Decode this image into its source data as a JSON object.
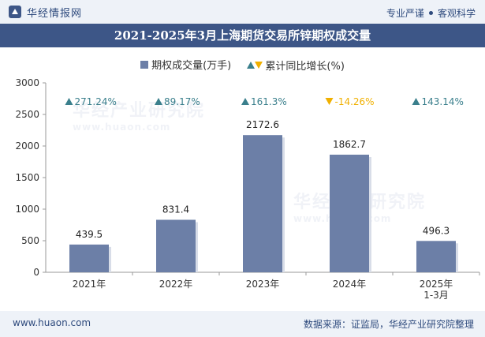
{
  "header": {
    "brand": "华经情报网",
    "slogan_left": "专业严谨",
    "slogan_right": "客观科学"
  },
  "title": "2021-2025年3月上海期货交易所锌期权成交量",
  "legend": {
    "bar": "期权成交量(万手)",
    "line": "累计同比增长(%)"
  },
  "footer": {
    "url": "www.huaon.com",
    "source": "数据来源：证监局，华经产业研究院整理"
  },
  "watermark": {
    "cn": "华经产业研究院",
    "en": "www.huaon.com"
  },
  "chart_data": {
    "type": "bar",
    "categories": [
      "2021年",
      "2022年",
      "2023年",
      "2024年",
      "2025年\n1-3月"
    ],
    "series": [
      {
        "name": "期权成交量(万手)",
        "values": [
          439.5,
          831.4,
          2172.6,
          1862.7,
          496.3
        ]
      },
      {
        "name": "累计同比增长(%)",
        "values": [
          271.24,
          89.17,
          161.3,
          -14.26,
          143.14
        ]
      }
    ],
    "value_labels": [
      "439.5",
      "831.4",
      "2172.6",
      "1862.7",
      "496.3"
    ],
    "growth_labels": [
      "271.24%",
      "89.17%",
      "161.3%",
      "-14.26%",
      "143.14%"
    ],
    "yticks": [
      0,
      500,
      1000,
      1500,
      2000,
      2500,
      3000
    ],
    "ylim": [
      0,
      3000
    ],
    "colors": {
      "bar": "#6c7fa7",
      "up": "#3a7f8c",
      "down": "#f0b000",
      "axis": "#999999"
    },
    "grid": false,
    "legend_position": "top"
  }
}
